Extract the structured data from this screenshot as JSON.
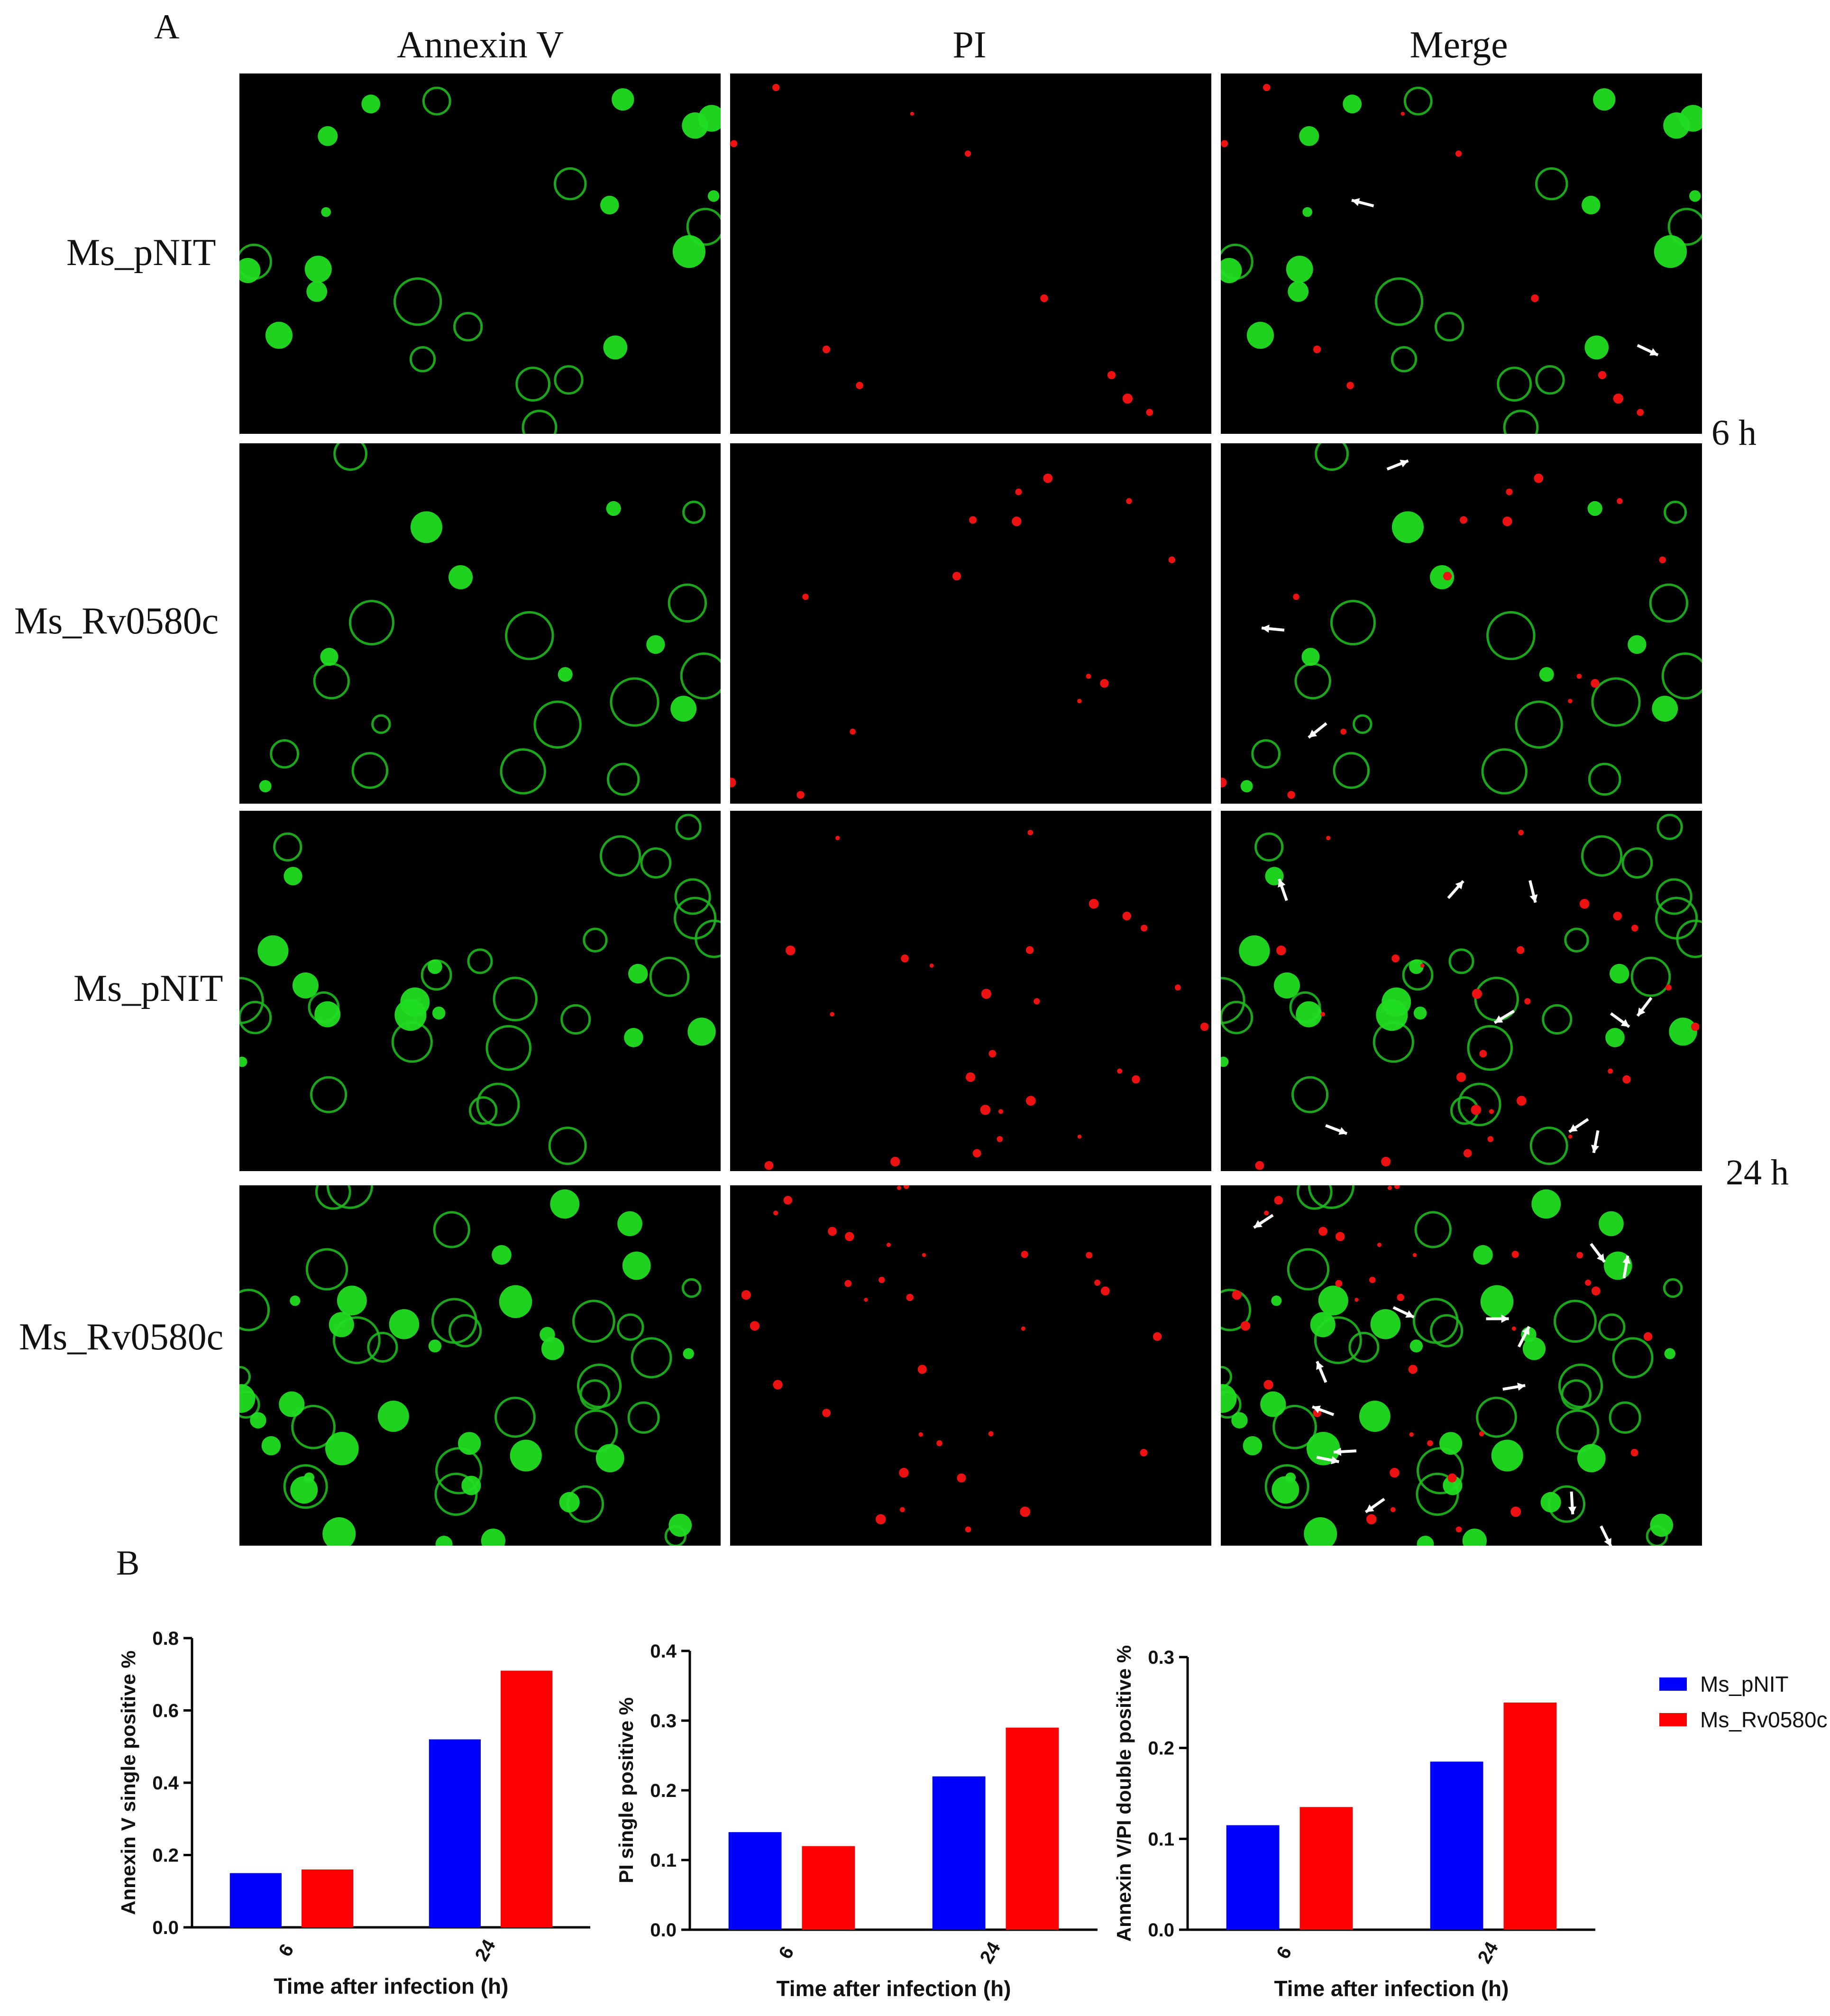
{
  "panels": {
    "a": "A",
    "b": "B"
  },
  "columns": [
    "Annexin V",
    "PI",
    "Merge"
  ],
  "rows": [
    "Ms_pNIT",
    "Ms_Rv0580c",
    "Ms_pNIT",
    "Ms_Rv0580c"
  ],
  "times": [
    "6 h",
    "24 h"
  ],
  "colors": {
    "pnit": "#0000ff",
    "rv0580c": "#ff0000",
    "annexin": "#22dd22",
    "pi": "#ee1111"
  },
  "legend": [
    "Ms_pNIT",
    "Ms_Rv0580c"
  ],
  "chart_data": [
    {
      "type": "bar",
      "categories": [
        "6",
        "24"
      ],
      "series": [
        {
          "name": "Ms_pNIT",
          "values": [
            0.15,
            0.52
          ]
        },
        {
          "name": "Ms_Rv0580c",
          "values": [
            0.16,
            0.71
          ]
        }
      ],
      "xlabel": "Time after infection (h)",
      "ylabel": "Annexin V single positive %",
      "ylim": [
        0,
        0.8
      ],
      "yticks": [
        "0.0",
        "0.2",
        "0.4",
        "0.6",
        "0.8"
      ]
    },
    {
      "type": "bar",
      "categories": [
        "6",
        "24"
      ],
      "series": [
        {
          "name": "Ms_pNIT",
          "values": [
            0.14,
            0.22
          ]
        },
        {
          "name": "Ms_Rv0580c",
          "values": [
            0.12,
            0.29
          ]
        }
      ],
      "xlabel": "Time after infection (h)",
      "ylabel": "PI single positive %",
      "ylim": [
        0,
        0.4
      ],
      "yticks": [
        "0.0",
        "0.1",
        "0.2",
        "0.3",
        "0.4"
      ]
    },
    {
      "type": "bar",
      "categories": [
        "6",
        "24"
      ],
      "series": [
        {
          "name": "Ms_pNIT",
          "values": [
            0.115,
            0.185
          ]
        },
        {
          "name": "Ms_Rv0580c",
          "values": [
            0.135,
            0.25
          ]
        }
      ],
      "xlabel": "Time after infection (h)",
      "ylabel": "Annexin V/PI double positive %",
      "ylim": [
        0,
        0.3
      ],
      "yticks": [
        "0.0",
        "0.1",
        "0.2",
        "0.3"
      ]
    }
  ]
}
